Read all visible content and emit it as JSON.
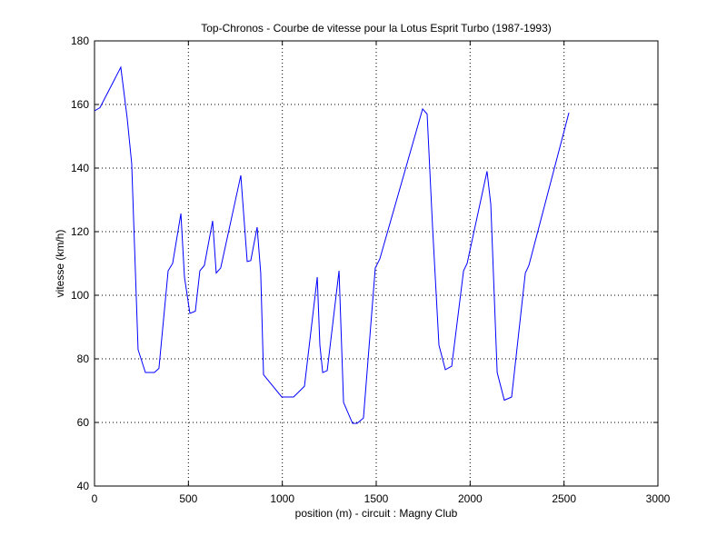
{
  "chart_data": {
    "type": "line",
    "title": "Top-Chronos - Courbe de vitesse pour la Lotus Esprit Turbo (1987-1993)",
    "xlabel": "position (m) - circuit : Magny Club",
    "ylabel": "vitesse (km/h)",
    "x": [
      0,
      29,
      140,
      174,
      198,
      232,
      271,
      319,
      343,
      392,
      416,
      460,
      479,
      508,
      537,
      561,
      585,
      629,
      648,
      672,
      779,
      813,
      832,
      866,
      885,
      900,
      997,
      1060,
      1118,
      1186,
      1200,
      1215,
      1239,
      1302,
      1326,
      1374,
      1398,
      1432,
      1495,
      1519,
      1747,
      1771,
      1800,
      1834,
      1868,
      1902,
      1965,
      1984,
      2090,
      2110,
      2144,
      2182,
      2221,
      2294,
      2313,
      2526
    ],
    "values": [
      158,
      159,
      171.7,
      155.7,
      141.4,
      82.9,
      75.7,
      75.7,
      77,
      107.7,
      110,
      125.7,
      105.7,
      94.3,
      95,
      107.7,
      109.4,
      123.4,
      107,
      108.6,
      137.7,
      110.6,
      110.9,
      121.4,
      107,
      75,
      68,
      68,
      71.4,
      105.7,
      84.3,
      75.7,
      76.3,
      107.7,
      66.3,
      59.7,
      59.7,
      61.4,
      108.6,
      111.4,
      158.6,
      157,
      121.4,
      84.3,
      76.6,
      77.7,
      107.7,
      110,
      139,
      128.6,
      75.7,
      67,
      68,
      107,
      109.4,
      157.4
    ],
    "color": "#0000ff",
    "xlim": [
      0,
      3000
    ],
    "xticks": [
      0,
      500,
      1000,
      1500,
      2000,
      2500,
      3000
    ],
    "ylim": [
      40,
      180
    ],
    "yticks": [
      40,
      60,
      80,
      100,
      120,
      140,
      160,
      180
    ],
    "grid": true
  }
}
